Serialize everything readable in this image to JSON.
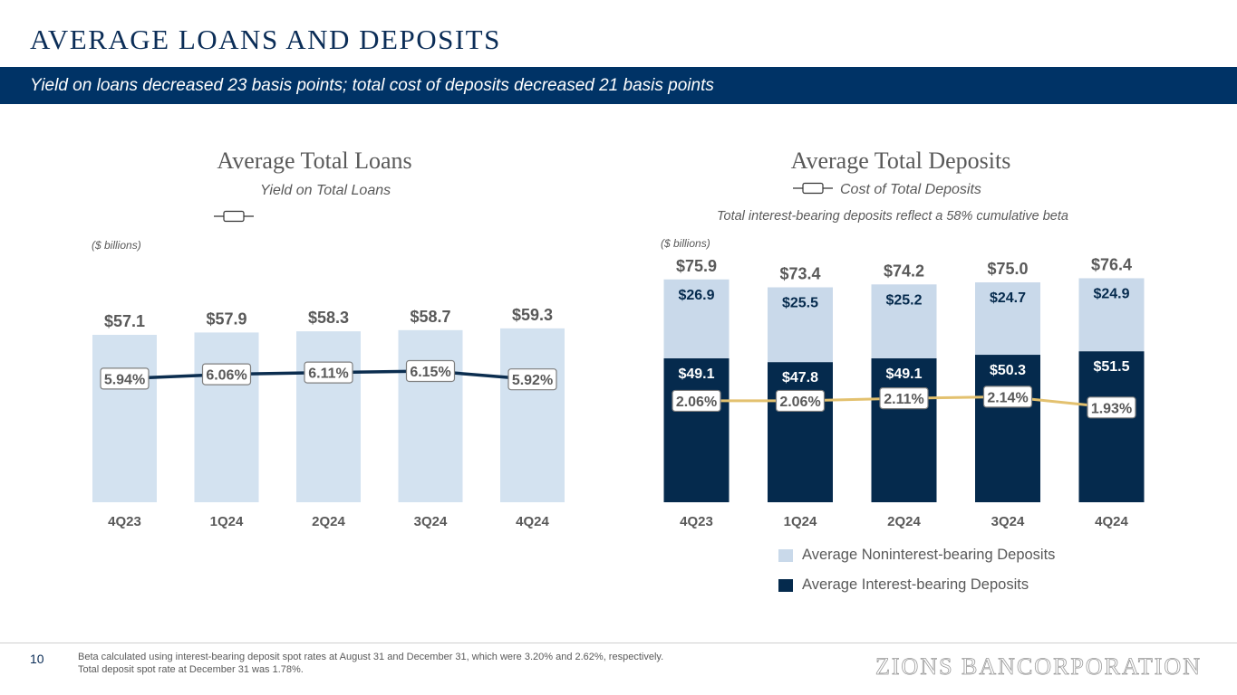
{
  "header": {
    "title": "AVERAGE LOANS AND DEPOSITS",
    "subtitle": "Yield on loans decreased 23 basis points; total cost of deposits decreased 21 basis points"
  },
  "loans": {
    "title": "Average Total Loans",
    "line_legend": "Yield on Total Loans",
    "units_note": "($ billions)"
  },
  "deposits": {
    "title": "Average Total Deposits",
    "line_legend": "Cost of Total Deposits",
    "subtitle": "Total interest-bearing deposits reflect a 58% cumulative beta",
    "units_note": "($ billions)",
    "legend": [
      {
        "label": "Average Noninterest-bearing Deposits",
        "color": "#c9d9ea"
      },
      {
        "label": "Average Interest-bearing Deposits",
        "color": "#052a4d"
      }
    ]
  },
  "colors": {
    "loan_bar": "#d3e2f0",
    "loan_line": "#0b2d4f",
    "nonint_bar": "#c9d9ea",
    "int_bar": "#052a4d",
    "deposit_line": "#e3c16f",
    "pill_border": "#7f7f7f",
    "text_gray": "#595959"
  },
  "chart_data": [
    {
      "type": "bar",
      "title": "Average Total Loans",
      "units": "$ billions",
      "categories": [
        "4Q23",
        "1Q24",
        "2Q24",
        "3Q24",
        "4Q24"
      ],
      "series": [
        {
          "name": "Average Total Loans",
          "values": [
            57.1,
            57.9,
            58.3,
            58.7,
            59.3
          ],
          "labels": [
            "$57.1",
            "$57.9",
            "$58.3",
            "$58.7",
            "$59.3"
          ]
        }
      ],
      "line": {
        "name": "Yield on Total Loans",
        "values": [
          5.94,
          6.06,
          6.11,
          6.15,
          5.92
        ],
        "labels": [
          "5.94%",
          "6.06%",
          "6.11%",
          "6.15%",
          "5.92%"
        ]
      }
    },
    {
      "type": "bar",
      "stacked": true,
      "title": "Average Total Deposits",
      "units": "$ billions",
      "categories": [
        "4Q23",
        "1Q24",
        "2Q24",
        "3Q24",
        "4Q24"
      ],
      "series": [
        {
          "name": "Average Interest-bearing Deposits",
          "values": [
            49.1,
            47.8,
            49.1,
            50.3,
            51.5
          ],
          "labels": [
            "$49.1",
            "$47.8",
            "$49.1",
            "$50.3",
            "$51.5"
          ]
        },
        {
          "name": "Average Noninterest-bearing Deposits",
          "values": [
            26.9,
            25.5,
            25.2,
            24.7,
            24.9
          ],
          "labels": [
            "$26.9",
            "$25.5",
            "$25.2",
            "$24.7",
            "$24.9"
          ]
        }
      ],
      "totals": {
        "values": [
          75.9,
          73.4,
          74.2,
          75.0,
          76.4
        ],
        "labels": [
          "$75.9",
          "$73.4",
          "$74.2",
          "$75.0",
          "$76.4"
        ]
      },
      "line": {
        "name": "Cost of Total Deposits",
        "values": [
          2.06,
          2.06,
          2.11,
          2.14,
          1.93
        ],
        "labels": [
          "2.06%",
          "2.06%",
          "2.11%",
          "2.14%",
          "1.93%"
        ]
      }
    }
  ],
  "footer": {
    "page_number": "10",
    "footnotes": [
      "Beta calculated using interest-bearing deposit spot rates at August 31 and December 31, which were 3.20% and 2.62%, respectively.",
      "Total deposit spot rate at December 31 was 1.78%."
    ],
    "logo_text": "ZIONS BANCORPORATION"
  }
}
